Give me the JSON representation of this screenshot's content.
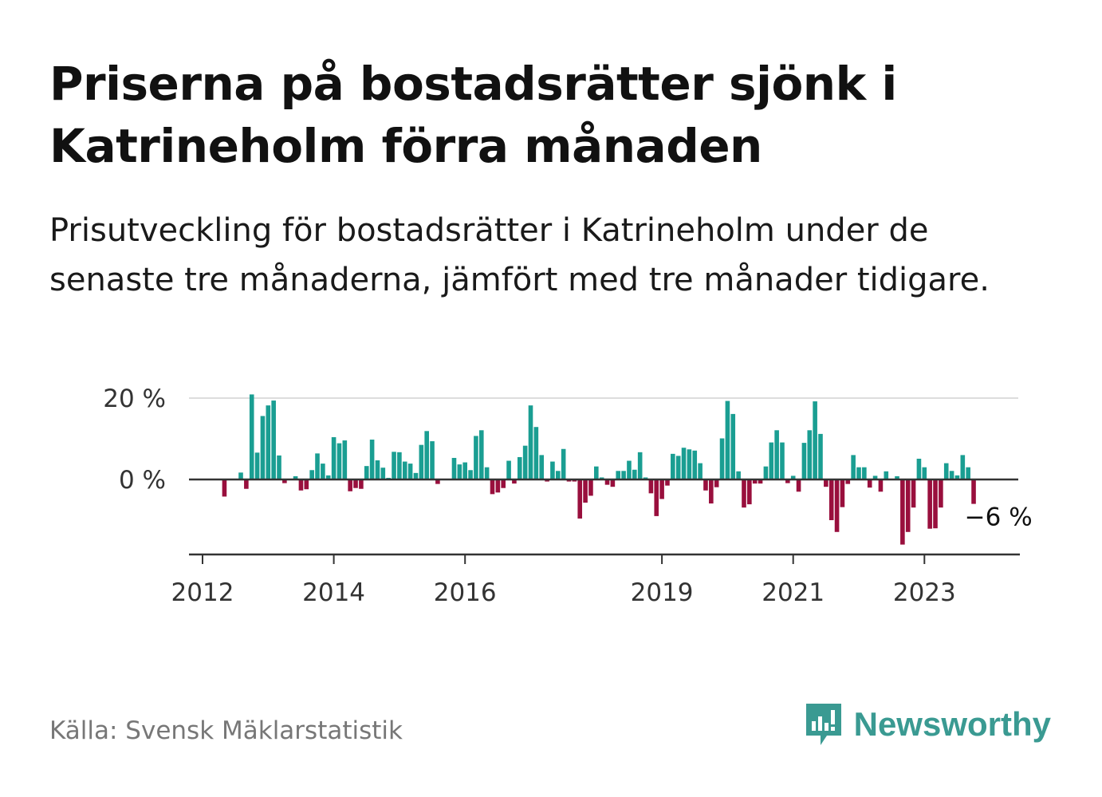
{
  "title": "Priserna på bostadsrätter sjönk i Katrineholm förra månaden",
  "subtitle": "Prisutveckling för bostadsrätter i Katrineholm under de senaste tre månaderna, jämfört med tre månader tidigare.",
  "source": "Källa: Svensk Mäklarstatistik",
  "brand": {
    "name": "Newsworthy",
    "icon": "newsworthy-logo-icon"
  },
  "colors": {
    "positive": "#1a9e92",
    "negative": "#990f3d",
    "axis": "#333333",
    "grid": "#dddddd"
  },
  "chart_data": {
    "type": "bar",
    "title": "",
    "xlabel": "",
    "ylabel": "",
    "ylim": [
      -16,
      20
    ],
    "y_ticks": [
      {
        "value": 0,
        "label": "0 %"
      },
      {
        "value": 20,
        "label": "20 %"
      }
    ],
    "x_ticks": [
      {
        "value": 2012.0,
        "label": "2012"
      },
      {
        "value": 2014.0,
        "label": "2014"
      },
      {
        "value": 2016.0,
        "label": "2016"
      },
      {
        "value": 2019.0,
        "label": "2019"
      },
      {
        "value": 2021.0,
        "label": "2021"
      },
      {
        "value": 2023.0,
        "label": "2023"
      }
    ],
    "x_range": [
      2011.8,
      2025.3
    ],
    "grid": "horizontal",
    "annotation": {
      "label": "−6 %",
      "month_index": 136
    },
    "start_month": "2012-05",
    "series": [
      {
        "values": [
          -4.2,
          null,
          null,
          1.7,
          -2.3,
          20.9,
          6.6,
          15.6,
          18.2,
          19.4,
          5.9,
          -0.9,
          null,
          0.8,
          -2.7,
          -2.4,
          2.3,
          6.4,
          3.9,
          1.0,
          10.4,
          8.9,
          9.6,
          -2.9,
          -2.1,
          -2.3,
          3.3,
          9.8,
          4.7,
          2.9,
          0.4,
          6.8,
          6.7,
          4.4,
          3.9,
          1.6,
          8.5,
          11.9,
          9.4,
          -1.1,
          null,
          null,
          5.3,
          3.7,
          4.2,
          2.3,
          10.7,
          12.1,
          3.0,
          -3.6,
          -3.2,
          -2.1,
          4.6,
          -1.0,
          5.5,
          8.3,
          18.2,
          12.9,
          6.0,
          -0.5,
          4.4,
          2.1,
          7.5,
          -0.5,
          -0.5,
          -9.6,
          -5.7,
          -4.0,
          3.2,
          0.5,
          -1.3,
          -1.8,
          2.1,
          2.1,
          4.6,
          2.4,
          6.7,
          0.5,
          -3.4,
          -9.0,
          -4.8,
          -1.5,
          6.3,
          5.8,
          7.8,
          7.4,
          7.1,
          4.0,
          -2.7,
          -5.9,
          -1.9,
          10.1,
          19.3,
          16.1,
          2.0,
          -6.9,
          -6.1,
          -1.0,
          -1.0,
          3.2,
          9.1,
          12.1,
          9.1,
          -0.9,
          0.9,
          -3.0,
          9.0,
          12.1,
          19.2,
          11.2,
          -1.8,
          -10.0,
          -12.9,
          -6.8,
          -1.1,
          6.0,
          3.0,
          3.0,
          -2.0,
          0.9,
          -3.0,
          2.0,
          null,
          0.8,
          -16.0,
          -12.9,
          -6.9,
          5.1,
          3.0,
          -12.1,
          -12.0,
          -6.9,
          4.0,
          2.1,
          1.0,
          6.0,
          3.0,
          -6.0
        ]
      }
    ]
  }
}
